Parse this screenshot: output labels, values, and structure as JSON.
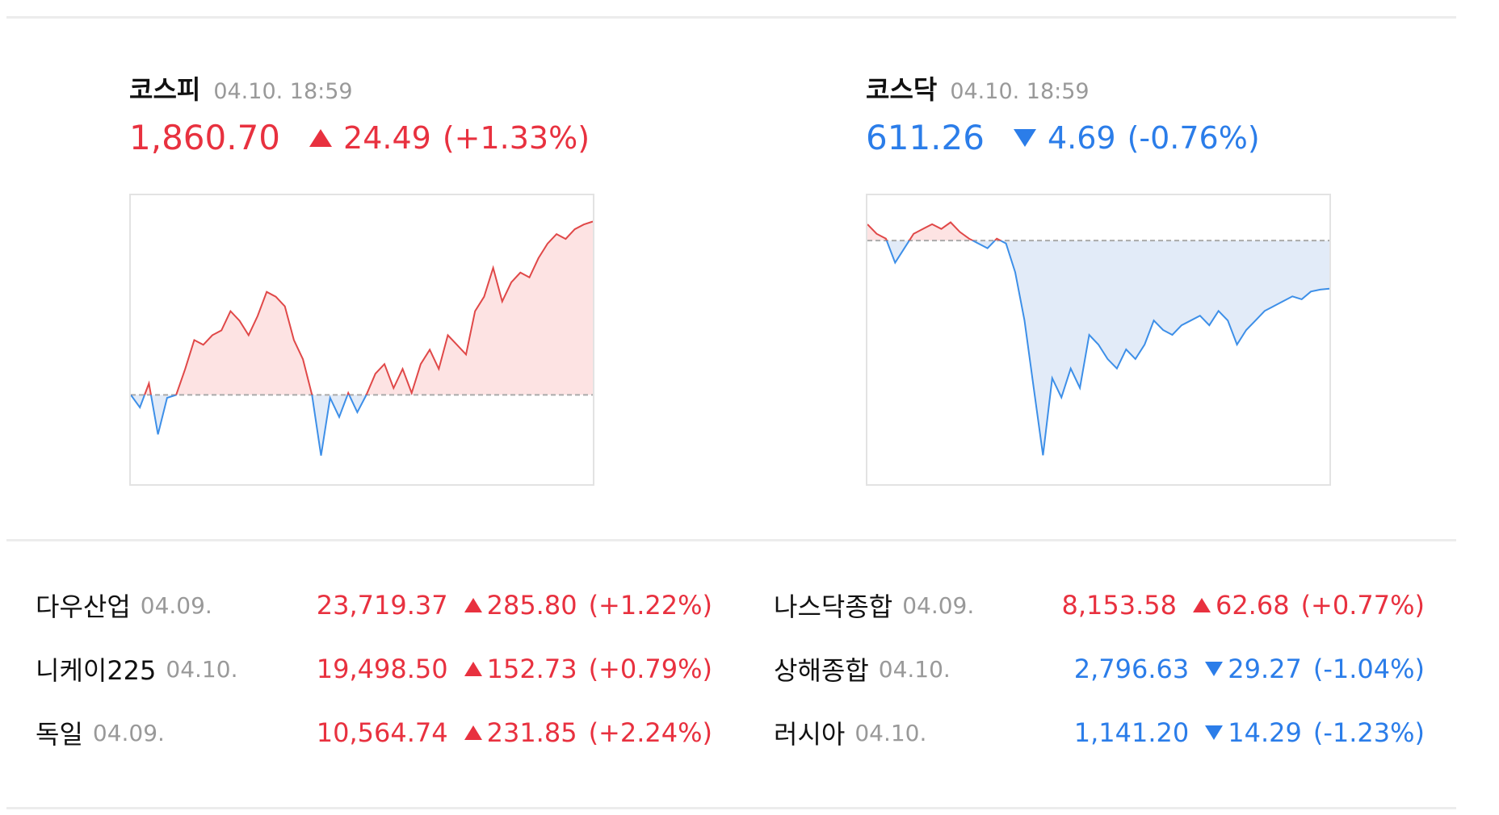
{
  "panels": [
    {
      "name": "코스피",
      "date": "04.10. 18:59",
      "value": "1,860.70",
      "change": "24.49",
      "change_pct": "(+1.33%)",
      "direction": "up",
      "chart": {
        "type": "line",
        "ylim": [
          1823.6,
          1864.4
        ],
        "baseline": 1836.21,
        "values": [
          1836.21,
          1834.44,
          1837.84,
          1830.63,
          1835.8,
          1836.21,
          1839.88,
          1843.96,
          1843.28,
          1844.64,
          1845.32,
          1848.04,
          1846.68,
          1844.64,
          1847.36,
          1850.76,
          1850.08,
          1848.72,
          1843.96,
          1841.24,
          1836.21,
          1827.64,
          1835.8,
          1833.08,
          1836.48,
          1833.76,
          1836.21,
          1839.2,
          1840.56,
          1837.16,
          1839.88,
          1836.48,
          1840.56,
          1842.6,
          1839.88,
          1844.64,
          1843.28,
          1841.92,
          1848.04,
          1850.08,
          1854.16,
          1849.4,
          1852.12,
          1853.48,
          1852.8,
          1855.52,
          1857.56,
          1858.92,
          1858.24,
          1859.6,
          1860.28,
          1860.7
        ]
      }
    },
    {
      "name": "코스닥",
      "date": "04.10. 18:59",
      "value": "611.26",
      "change": "4.69",
      "change_pct": "(-0.76%)",
      "direction": "down",
      "chart": {
        "type": "line",
        "ylim": [
          592.22,
          620.36
        ],
        "baseline": 615.95,
        "values": [
          617.54,
          616.61,
          616.14,
          613.79,
          615.2,
          616.61,
          617.08,
          617.54,
          617.08,
          617.73,
          616.79,
          616.14,
          615.67,
          615.2,
          616.14,
          615.67,
          612.85,
          608.16,
          601.6,
          595.03,
          602.54,
          600.66,
          603.48,
          601.6,
          606.76,
          605.82,
          604.41,
          603.48,
          605.35,
          604.41,
          605.82,
          608.16,
          607.23,
          606.76,
          607.7,
          608.16,
          608.63,
          607.7,
          609.1,
          608.16,
          605.82,
          607.23,
          608.16,
          609.1,
          609.57,
          610.04,
          610.51,
          610.23,
          610.98,
          611.17,
          611.26
        ]
      }
    }
  ],
  "indices": [
    {
      "name": "다우산업",
      "date": "04.09.",
      "value": "23,719.37",
      "change": "285.80",
      "change_pct": "(+1.22%)",
      "direction": "up"
    },
    {
      "name": "나스닥종합",
      "date": "04.09.",
      "value": "8,153.58",
      "change": "62.68",
      "change_pct": "(+0.77%)",
      "direction": "up"
    },
    {
      "name": "니케이225",
      "date": "04.10.",
      "value": "19,498.50",
      "change": "152.73",
      "change_pct": "(+0.79%)",
      "direction": "up"
    },
    {
      "name": "상해종합",
      "date": "04.10.",
      "value": "2,796.63",
      "change": "29.27",
      "change_pct": "(-1.04%)",
      "direction": "down"
    },
    {
      "name": "독일",
      "date": "04.09.",
      "value": "10,564.74",
      "change": "231.85",
      "change_pct": "(+2.24%)",
      "direction": "up"
    },
    {
      "name": "러시아",
      "date": "04.10.",
      "value": "1,141.20",
      "change": "14.29",
      "change_pct": "(-1.23%)",
      "direction": "down"
    }
  ]
}
